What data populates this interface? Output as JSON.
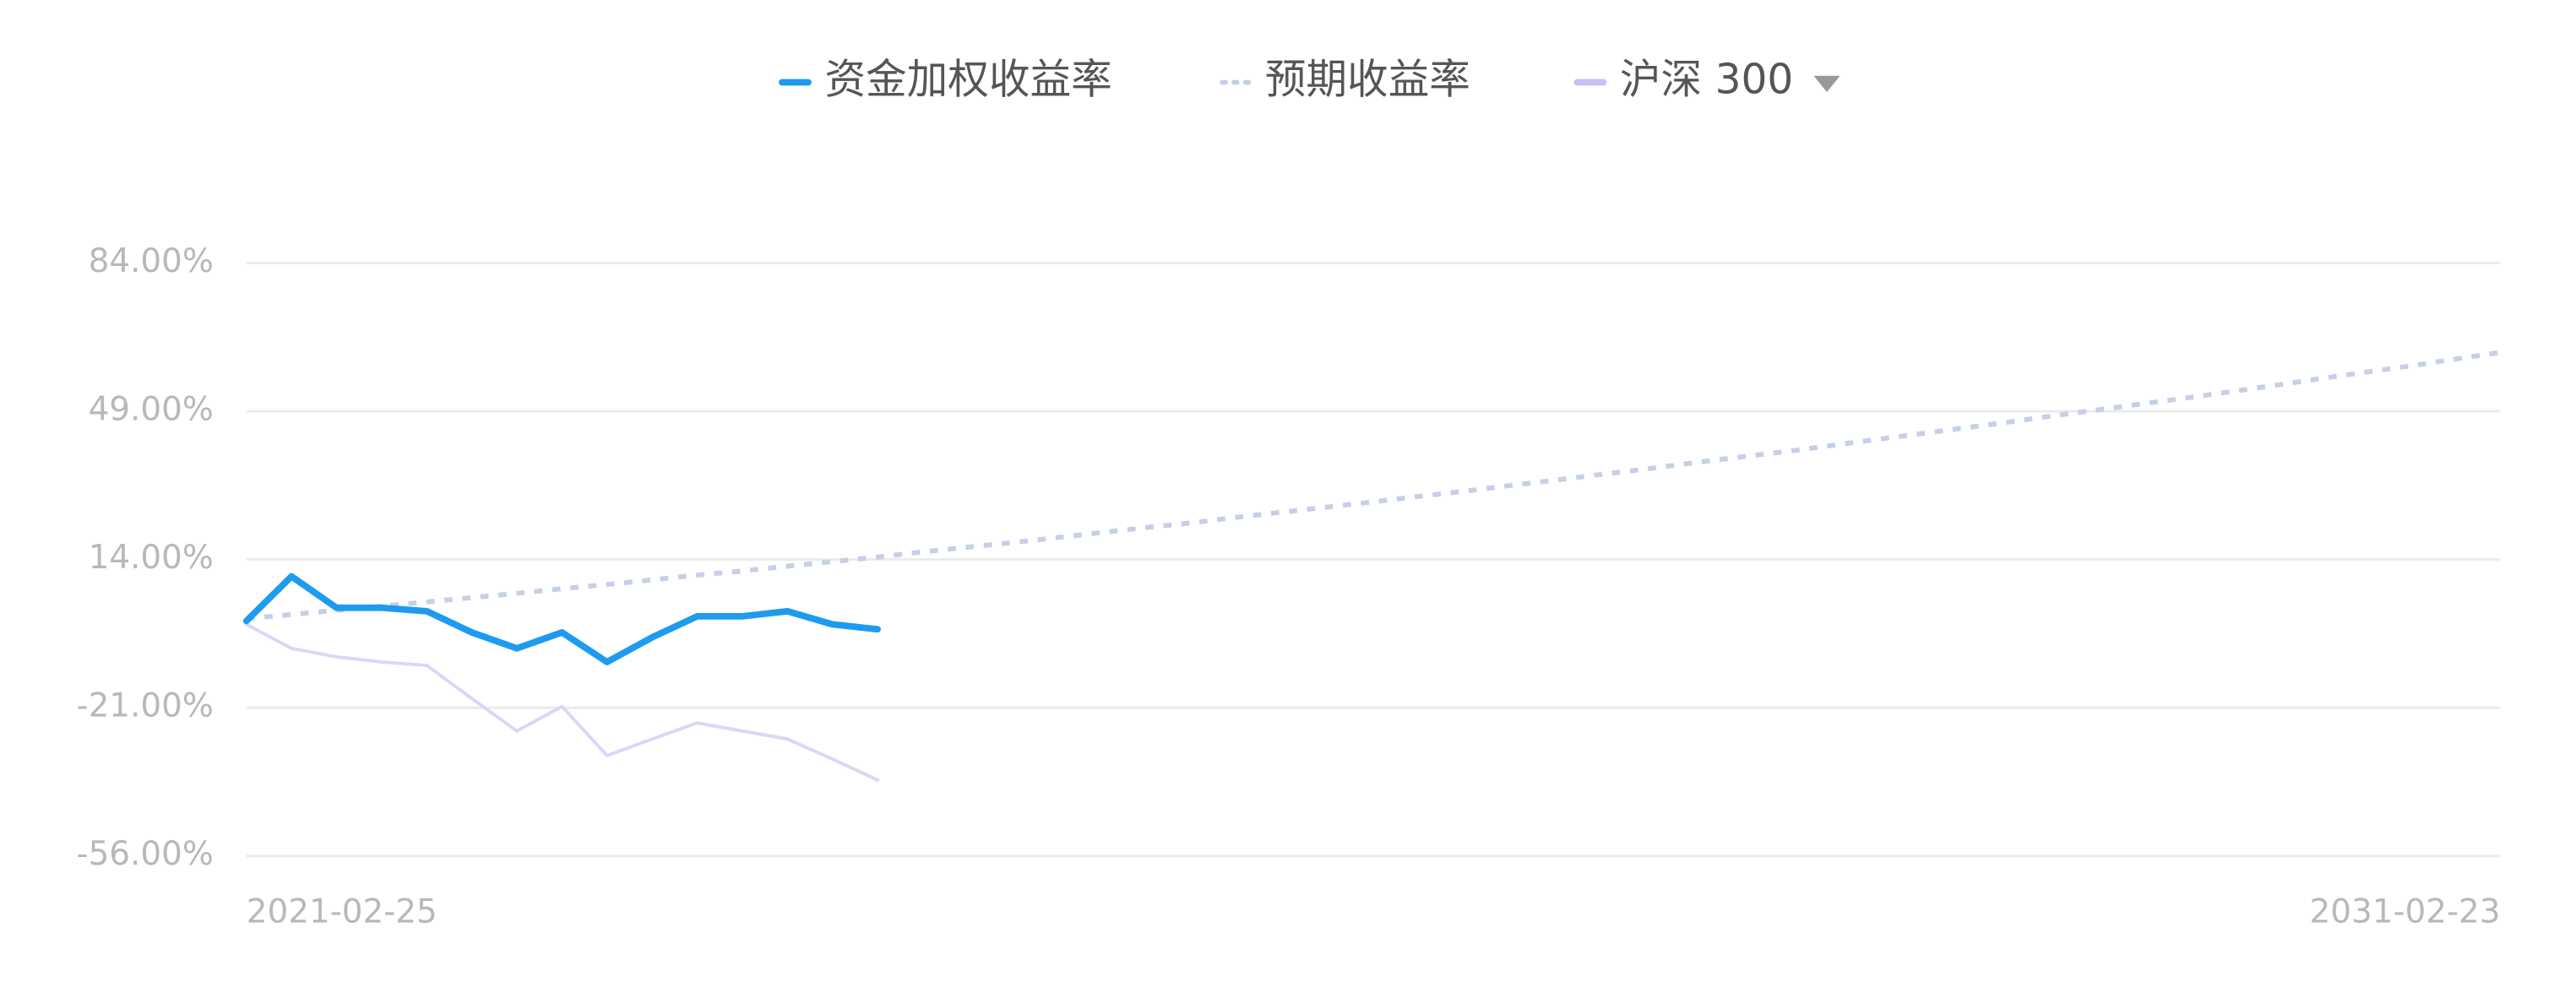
{
  "chart_data": {
    "type": "line",
    "categories": [
      "2021-02-25",
      null,
      null,
      null,
      null,
      null,
      null,
      null,
      null,
      null,
      null,
      null,
      null,
      null,
      null,
      null,
      null,
      null,
      null,
      null,
      null,
      null,
      null,
      null,
      null,
      null,
      null,
      null,
      null,
      null,
      null,
      null,
      null,
      null,
      null,
      null,
      null,
      null,
      null,
      null,
      null,
      null,
      null,
      null,
      null,
      null,
      null,
      null,
      null,
      null,
      "2031-02-23"
    ],
    "series": [
      {
        "name": "资金加权收益率",
        "color": "#1e9bf0",
        "style": "solid",
        "width": 4,
        "values": [
          -0.5,
          10,
          2.6,
          2.6,
          1.8,
          -3.2,
          -7,
          -3.2,
          -10.2,
          -4.4,
          0.6,
          0.6,
          1.8,
          -1.3,
          -2.5,
          null,
          null,
          null,
          null,
          null,
          null,
          null,
          null,
          null,
          null,
          null,
          null,
          null,
          null,
          null,
          null,
          null,
          null,
          null,
          null,
          null,
          null,
          null,
          null,
          null,
          null,
          null,
          null,
          null,
          null,
          null,
          null,
          null,
          null,
          null,
          null
        ]
      },
      {
        "name": "预期收益率",
        "color": "#c5d0e6",
        "style": "dotted",
        "width": 3,
        "values": [
          0,
          1.0,
          2.0,
          3.0,
          4.0,
          5.0,
          6.0,
          7.1,
          8.1,
          9.2,
          10.3,
          11.3,
          12.4,
          13.5,
          14.6,
          15.8,
          16.9,
          18.0,
          19.2,
          20.4,
          21.6,
          22.7,
          24.0,
          25.2,
          26.4,
          27.6,
          28.9,
          30.1,
          31.4,
          32.7,
          34.0,
          35.3,
          36.7,
          38.0,
          39.3,
          40.7,
          42.1,
          43.5,
          44.9,
          46.3,
          47.8,
          49.2,
          50.7,
          52.1,
          53.6,
          55.1,
          56.7,
          58.2,
          59.7,
          61.3,
          62.9
        ]
      },
      {
        "name": "沪深 300",
        "color": "#ddd5f7",
        "style": "solid",
        "width": 2,
        "values": [
          -1.3,
          -7,
          -9,
          -10.2,
          -11,
          -18.8,
          -26.5,
          -20.7,
          -32.3,
          -28.4,
          -24.6,
          -26.5,
          -28.4,
          -33.1,
          -38.1,
          null,
          null,
          null,
          null,
          null,
          null,
          null,
          null,
          null,
          null,
          null,
          null,
          null,
          null,
          null,
          null,
          null,
          null,
          null,
          null,
          null,
          null,
          null,
          null,
          null,
          null,
          null,
          null,
          null,
          null,
          null,
          null,
          null,
          null,
          null,
          null
        ]
      }
    ],
    "ylim": [
      -56,
      84
    ],
    "yticks": [
      {
        "value": -56,
        "label": "-56.00%"
      },
      {
        "value": -21,
        "label": "-21.00%"
      },
      {
        "value": 14,
        "label": "14.00%"
      },
      {
        "value": 49,
        "label": "49.00%"
      },
      {
        "value": 84,
        "label": "84.00%"
      }
    ],
    "grid": true,
    "legend": "top"
  }
}
